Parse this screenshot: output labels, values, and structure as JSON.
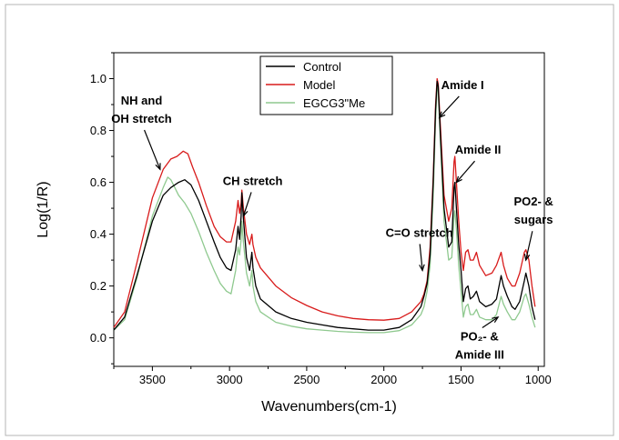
{
  "chart_data": {
    "type": "line",
    "xlabel": "Wavenumbers(cm-1)",
    "ylabel": "Log(1/R)",
    "xlim": [
      3750,
      960
    ],
    "ylim": [
      -0.11,
      1.1
    ],
    "x_reversed": true,
    "xticks": [
      "3500",
      "3000",
      "2500",
      "2000",
      "1500",
      "1000"
    ],
    "yticks": [
      "0.0",
      "0.2",
      "0.4",
      "0.6",
      "0.8",
      "1.0"
    ],
    "grid": false,
    "legend_position": "top-center",
    "series": [
      {
        "name": "Control",
        "color": "#000000",
        "points": [
          [
            3750,
            0.03
          ],
          [
            3680,
            0.08
          ],
          [
            3600,
            0.24
          ],
          [
            3500,
            0.45
          ],
          [
            3430,
            0.55
          ],
          [
            3380,
            0.58
          ],
          [
            3330,
            0.6
          ],
          [
            3290,
            0.61
          ],
          [
            3250,
            0.59
          ],
          [
            3200,
            0.53
          ],
          [
            3150,
            0.45
          ],
          [
            3100,
            0.37
          ],
          [
            3060,
            0.31
          ],
          [
            3020,
            0.27
          ],
          [
            2990,
            0.26
          ],
          [
            2960,
            0.34
          ],
          [
            2945,
            0.43
          ],
          [
            2935,
            0.38
          ],
          [
            2925,
            0.47
          ],
          [
            2920,
            0.56
          ],
          [
            2910,
            0.46
          ],
          [
            2890,
            0.31
          ],
          [
            2870,
            0.26
          ],
          [
            2855,
            0.33
          ],
          [
            2848,
            0.27
          ],
          [
            2830,
            0.2
          ],
          [
            2800,
            0.15
          ],
          [
            2700,
            0.1
          ],
          [
            2600,
            0.075
          ],
          [
            2500,
            0.06
          ],
          [
            2400,
            0.05
          ],
          [
            2300,
            0.04
          ],
          [
            2200,
            0.035
          ],
          [
            2100,
            0.03
          ],
          [
            2000,
            0.03
          ],
          [
            1900,
            0.04
          ],
          [
            1820,
            0.07
          ],
          [
            1760,
            0.12
          ],
          [
            1740,
            0.16
          ],
          [
            1720,
            0.21
          ],
          [
            1700,
            0.32
          ],
          [
            1680,
            0.6
          ],
          [
            1665,
            0.88
          ],
          [
            1655,
            0.99
          ],
          [
            1648,
            0.97
          ],
          [
            1635,
            0.8
          ],
          [
            1610,
            0.5
          ],
          [
            1580,
            0.35
          ],
          [
            1560,
            0.37
          ],
          [
            1545,
            0.58
          ],
          [
            1540,
            0.6
          ],
          [
            1530,
            0.5
          ],
          [
            1515,
            0.36
          ],
          [
            1500,
            0.26
          ],
          [
            1485,
            0.14
          ],
          [
            1470,
            0.19
          ],
          [
            1455,
            0.2
          ],
          [
            1440,
            0.15
          ],
          [
            1420,
            0.16
          ],
          [
            1400,
            0.18
          ],
          [
            1380,
            0.14
          ],
          [
            1340,
            0.12
          ],
          [
            1300,
            0.13
          ],
          [
            1270,
            0.15
          ],
          [
            1240,
            0.24
          ],
          [
            1225,
            0.2
          ],
          [
            1200,
            0.16
          ],
          [
            1170,
            0.12
          ],
          [
            1150,
            0.11
          ],
          [
            1120,
            0.14
          ],
          [
            1090,
            0.22
          ],
          [
            1080,
            0.25
          ],
          [
            1060,
            0.2
          ],
          [
            1040,
            0.12
          ],
          [
            1020,
            0.07
          ]
        ]
      },
      {
        "name": "Model",
        "color": "#d81b1b",
        "points": [
          [
            3750,
            0.04
          ],
          [
            3680,
            0.1
          ],
          [
            3600,
            0.29
          ],
          [
            3500,
            0.54
          ],
          [
            3430,
            0.65
          ],
          [
            3380,
            0.69
          ],
          [
            3340,
            0.7
          ],
          [
            3300,
            0.72
          ],
          [
            3270,
            0.71
          ],
          [
            3240,
            0.66
          ],
          [
            3200,
            0.6
          ],
          [
            3150,
            0.51
          ],
          [
            3100,
            0.43
          ],
          [
            3060,
            0.39
          ],
          [
            3020,
            0.37
          ],
          [
            2990,
            0.37
          ],
          [
            2960,
            0.45
          ],
          [
            2945,
            0.53
          ],
          [
            2935,
            0.48
          ],
          [
            2925,
            0.52
          ],
          [
            2920,
            0.57
          ],
          [
            2910,
            0.5
          ],
          [
            2890,
            0.4
          ],
          [
            2870,
            0.36
          ],
          [
            2855,
            0.4
          ],
          [
            2848,
            0.36
          ],
          [
            2830,
            0.31
          ],
          [
            2800,
            0.27
          ],
          [
            2700,
            0.2
          ],
          [
            2600,
            0.155
          ],
          [
            2500,
            0.125
          ],
          [
            2400,
            0.1
          ],
          [
            2300,
            0.085
          ],
          [
            2200,
            0.075
          ],
          [
            2100,
            0.07
          ],
          [
            2000,
            0.068
          ],
          [
            1900,
            0.075
          ],
          [
            1820,
            0.1
          ],
          [
            1760,
            0.14
          ],
          [
            1740,
            0.17
          ],
          [
            1720,
            0.22
          ],
          [
            1700,
            0.35
          ],
          [
            1680,
            0.62
          ],
          [
            1665,
            0.9
          ],
          [
            1655,
            1.0
          ],
          [
            1648,
            0.98
          ],
          [
            1635,
            0.83
          ],
          [
            1610,
            0.55
          ],
          [
            1580,
            0.45
          ],
          [
            1560,
            0.5
          ],
          [
            1545,
            0.68
          ],
          [
            1540,
            0.7
          ],
          [
            1530,
            0.6
          ],
          [
            1515,
            0.45
          ],
          [
            1500,
            0.33
          ],
          [
            1485,
            0.26
          ],
          [
            1470,
            0.33
          ],
          [
            1455,
            0.34
          ],
          [
            1440,
            0.3
          ],
          [
            1420,
            0.3
          ],
          [
            1400,
            0.33
          ],
          [
            1380,
            0.28
          ],
          [
            1340,
            0.24
          ],
          [
            1300,
            0.25
          ],
          [
            1270,
            0.28
          ],
          [
            1240,
            0.33
          ],
          [
            1225,
            0.28
          ],
          [
            1200,
            0.23
          ],
          [
            1170,
            0.2
          ],
          [
            1150,
            0.2
          ],
          [
            1120,
            0.25
          ],
          [
            1090,
            0.33
          ],
          [
            1080,
            0.34
          ],
          [
            1060,
            0.3
          ],
          [
            1040,
            0.2
          ],
          [
            1020,
            0.12
          ]
        ]
      },
      {
        "name": "EGCG3\"Me",
        "color": "#8fc98f",
        "points": [
          [
            3750,
            0.03
          ],
          [
            3680,
            0.07
          ],
          [
            3600,
            0.23
          ],
          [
            3500,
            0.47
          ],
          [
            3430,
            0.58
          ],
          [
            3400,
            0.62
          ],
          [
            3380,
            0.61
          ],
          [
            3330,
            0.55
          ],
          [
            3290,
            0.52
          ],
          [
            3250,
            0.48
          ],
          [
            3200,
            0.41
          ],
          [
            3150,
            0.33
          ],
          [
            3100,
            0.26
          ],
          [
            3060,
            0.21
          ],
          [
            3020,
            0.18
          ],
          [
            2990,
            0.17
          ],
          [
            2960,
            0.26
          ],
          [
            2945,
            0.35
          ],
          [
            2935,
            0.32
          ],
          [
            2925,
            0.38
          ],
          [
            2920,
            0.45
          ],
          [
            2910,
            0.37
          ],
          [
            2890,
            0.25
          ],
          [
            2870,
            0.2
          ],
          [
            2855,
            0.26
          ],
          [
            2848,
            0.2
          ],
          [
            2830,
            0.14
          ],
          [
            2800,
            0.1
          ],
          [
            2700,
            0.06
          ],
          [
            2600,
            0.045
          ],
          [
            2500,
            0.035
          ],
          [
            2400,
            0.03
          ],
          [
            2300,
            0.025
          ],
          [
            2200,
            0.022
          ],
          [
            2100,
            0.02
          ],
          [
            2000,
            0.02
          ],
          [
            1900,
            0.028
          ],
          [
            1820,
            0.05
          ],
          [
            1760,
            0.09
          ],
          [
            1740,
            0.12
          ],
          [
            1720,
            0.18
          ],
          [
            1700,
            0.28
          ],
          [
            1680,
            0.55
          ],
          [
            1665,
            0.84
          ],
          [
            1655,
            0.97
          ],
          [
            1648,
            0.95
          ],
          [
            1635,
            0.77
          ],
          [
            1610,
            0.45
          ],
          [
            1580,
            0.3
          ],
          [
            1560,
            0.31
          ],
          [
            1545,
            0.47
          ],
          [
            1540,
            0.49
          ],
          [
            1530,
            0.42
          ],
          [
            1515,
            0.28
          ],
          [
            1500,
            0.18
          ],
          [
            1485,
            0.08
          ],
          [
            1470,
            0.12
          ],
          [
            1455,
            0.13
          ],
          [
            1440,
            0.09
          ],
          [
            1420,
            0.09
          ],
          [
            1400,
            0.11
          ],
          [
            1380,
            0.08
          ],
          [
            1340,
            0.07
          ],
          [
            1300,
            0.07
          ],
          [
            1270,
            0.09
          ],
          [
            1240,
            0.16
          ],
          [
            1225,
            0.13
          ],
          [
            1200,
            0.1
          ],
          [
            1170,
            0.07
          ],
          [
            1150,
            0.07
          ],
          [
            1120,
            0.1
          ],
          [
            1090,
            0.16
          ],
          [
            1080,
            0.17
          ],
          [
            1060,
            0.13
          ],
          [
            1040,
            0.08
          ],
          [
            1020,
            0.04
          ]
        ]
      }
    ],
    "annotations": [
      {
        "lines": [
          "NH and",
          "OH stretch"
        ],
        "anchor": [
          3450,
          0.65
        ],
        "text_at": [
          3570,
          0.9
        ]
      },
      {
        "lines": [
          "CH stretch"
        ],
        "anchor": [
          2910,
          0.47
        ],
        "text_at": [
          2850,
          0.59
        ]
      },
      {
        "lines": [
          "Amide  I"
        ],
        "anchor": [
          1640,
          0.85
        ],
        "text_at": [
          1490,
          0.96
        ]
      },
      {
        "lines": [
          "Amide II"
        ],
        "anchor": [
          1530,
          0.6
        ],
        "text_at": [
          1390,
          0.71
        ]
      },
      {
        "lines": [
          "PO2-  &",
          "sugars"
        ],
        "anchor": [
          1080,
          0.3
        ],
        "text_at": [
          1030,
          0.51
        ]
      },
      {
        "lines": [
          "C=O stretch"
        ],
        "anchor": [
          1750,
          0.26
        ],
        "text_at": [
          1770,
          0.39
        ]
      },
      {
        "lines": [
          "PO₂-  &",
          "Amide III"
        ],
        "anchor": [
          1260,
          0.08
        ],
        "text_at": [
          1380,
          -0.01
        ]
      }
    ]
  }
}
